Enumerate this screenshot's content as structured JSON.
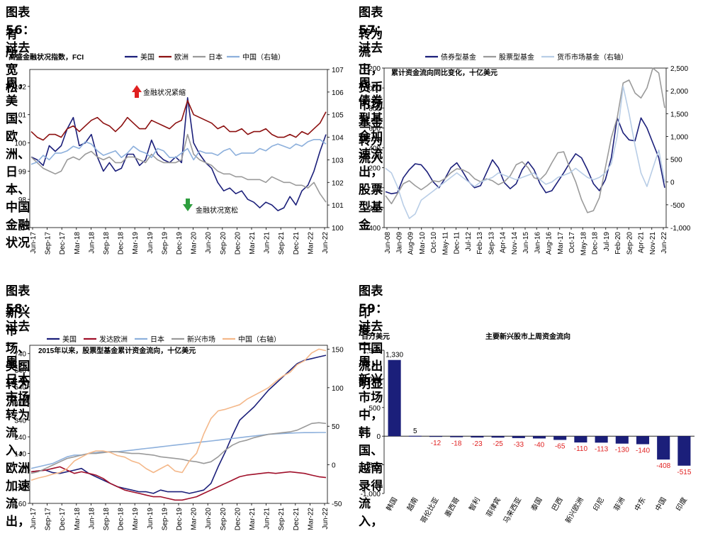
{
  "panel56": {
    "title_line1": "图表 56：过去一周，美国、欧洲、日本、中国金融状况",
    "title_line2": "有所宽松",
    "chart_data": {
      "type": "line",
      "title": "高盛金融状况指数，FCI",
      "y_left_ticks": [
        "102",
        "101",
        "100",
        "99",
        "98",
        "97"
      ],
      "y_left_range": [
        97,
        102.6
      ],
      "y_right_ticks": [
        "107",
        "106",
        "105",
        "104",
        "103",
        "102",
        "101",
        "100"
      ],
      "y_right_range": [
        100,
        107
      ],
      "x_tick_labels": [
        "Jun-17",
        "Sep-17",
        "Dec-17",
        "Mar-18",
        "Jun-18",
        "Sep-18",
        "Dec-18",
        "Mar-19",
        "Jun-19",
        "Sep-19",
        "Dec-19",
        "Mar-20",
        "Jun-20",
        "Sep-20",
        "Dec-20",
        "Mar-21",
        "Jun-21",
        "Sep-21",
        "Dec-21",
        "Mar-22",
        "Jun-22"
      ],
      "series": [
        {
          "name": "美国",
          "color": "#1b1f7a",
          "axis": "left",
          "values": [
            99.5,
            99.4,
            99.2,
            99.9,
            99.7,
            99.9,
            100.5,
            100.9,
            99.9,
            100.0,
            100.3,
            99.5,
            99.0,
            99.3,
            99.0,
            99.1,
            99.6,
            99.6,
            99.2,
            99.4,
            100.1,
            99.6,
            99.4,
            99.3,
            99.5,
            99.3,
            101.6,
            100.0,
            99.6,
            99.3,
            99.1,
            98.6,
            98.3,
            98.4,
            98.2,
            98.3,
            98.0,
            97.9,
            97.7,
            97.9,
            97.8,
            97.6,
            97.7,
            98.1,
            97.8,
            98.3,
            98.5,
            99.0,
            99.7,
            100.3
          ]
        },
        {
          "name": "欧洲",
          "color": "#8c1010",
          "axis": "left",
          "values": [
            100.4,
            100.2,
            100.1,
            100.3,
            100.3,
            100.2,
            100.5,
            100.6,
            100.4,
            100.6,
            100.8,
            100.9,
            100.7,
            100.6,
            100.4,
            100.6,
            100.9,
            100.7,
            100.5,
            100.5,
            100.8,
            100.7,
            100.6,
            100.5,
            100.7,
            100.8,
            101.5,
            101.0,
            100.9,
            100.8,
            100.7,
            100.5,
            100.6,
            100.4,
            100.4,
            100.5,
            100.3,
            100.4,
            100.4,
            100.5,
            100.3,
            100.2,
            100.2,
            100.3,
            100.2,
            100.4,
            100.3,
            100.5,
            100.7,
            101.1
          ]
        },
        {
          "name": "日本",
          "color": "#9a9a9a",
          "axis": "left",
          "values": [
            99.5,
            99.3,
            99.1,
            99.0,
            98.9,
            99.0,
            99.4,
            99.5,
            99.4,
            99.6,
            99.7,
            99.5,
            99.4,
            99.5,
            99.3,
            99.3,
            99.5,
            99.5,
            99.4,
            99.3,
            99.6,
            99.4,
            99.3,
            99.3,
            99.3,
            99.4,
            100.3,
            99.6,
            99.4,
            99.3,
            99.2,
            99.0,
            98.9,
            98.9,
            98.8,
            98.8,
            98.7,
            98.7,
            98.7,
            98.6,
            98.8,
            98.7,
            98.6,
            98.6,
            98.5,
            98.5,
            98.4,
            98.6,
            98.2,
            97.9
          ]
        },
        {
          "name": "中国（右轴）",
          "color": "#8db0dc",
          "axis": "right",
          "values": [
            102.8,
            102.9,
            103.2,
            103.0,
            103.3,
            103.3,
            103.4,
            103.6,
            103.5,
            103.8,
            103.7,
            103.4,
            103.2,
            103.3,
            103.4,
            103.1,
            103.3,
            103.6,
            103.4,
            103.3,
            103.1,
            103.5,
            103.4,
            103.1,
            103.1,
            103.3,
            103.5,
            103.0,
            103.4,
            103.3,
            103.3,
            103.2,
            103.4,
            103.5,
            103.2,
            103.3,
            103.3,
            103.3,
            103.5,
            103.4,
            103.6,
            103.7,
            103.6,
            103.5,
            103.7,
            103.6,
            103.8,
            103.9,
            103.9,
            103.7
          ]
        }
      ],
      "annotations": [
        {
          "text": "金融状况紧缩",
          "arrow": "up",
          "color": "#e02020"
        },
        {
          "text": "金融状况宽松",
          "arrow": "down",
          "color": "#2e9e3e"
        }
      ]
    }
  },
  "panel57": {
    "title_line1": "图表 57：过去一周，债券型基金加速流出，股票型基金",
    "title_line2": "转为流出，货币市场基金转为流入",
    "chart_data": {
      "type": "line",
      "title": "累计资金流向同比变化，十亿美元",
      "y_left_ticks": [
        "1,200",
        "1,000",
        "800",
        "600",
        "400",
        "200",
        "0",
        "-200",
        "-400"
      ],
      "y_left_range": [
        -400,
        1200
      ],
      "y_right_ticks": [
        "2,500",
        "2,000",
        "1,500",
        "1,000",
        "500",
        "0",
        "-500",
        "-1,000"
      ],
      "y_right_range": [
        -1000,
        2500
      ],
      "x_tick_labels": [
        "Jun-08",
        "Jan-09",
        "Aug-09",
        "Mar-10",
        "Oct-10",
        "May-11",
        "Dec-11",
        "Jul-12",
        "Feb-13",
        "Sep-13",
        "Apr-14",
        "Nov-14",
        "Jun-15",
        "Jan-16",
        "Aug-16",
        "Mar-17",
        "Oct-17",
        "May-18",
        "Dec-18",
        "Jul-19",
        "Feb-20",
        "Sep-20",
        "Apr-21",
        "Nov-21",
        "Jun-22"
      ],
      "series": [
        {
          "name": "债券型基金",
          "color": "#1b1f7a",
          "axis": "left",
          "values": [
            -40,
            -60,
            -50,
            100,
            180,
            240,
            230,
            160,
            60,
            0,
            90,
            200,
            250,
            160,
            60,
            0,
            20,
            150,
            280,
            200,
            50,
            -10,
            40,
            180,
            260,
            180,
            40,
            -50,
            -30,
            60,
            150,
            250,
            340,
            300,
            180,
            40,
            -30,
            80,
            300,
            700,
            550,
            480,
            470,
            700,
            600,
            450,
            300,
            0
          ]
        },
        {
          "name": "股票型基金",
          "color": "#9a9a9a",
          "axis": "left",
          "values": [
            -80,
            -160,
            -60,
            40,
            70,
            20,
            -20,
            20,
            70,
            60,
            90,
            150,
            190,
            180,
            150,
            90,
            60,
            90,
            70,
            30,
            60,
            120,
            230,
            260,
            200,
            100,
            80,
            140,
            250,
            350,
            360,
            200,
            60,
            -120,
            -250,
            -230,
            -100,
            200,
            500,
            700,
            1050,
            1080,
            950,
            900,
            1000,
            1200,
            1150,
            800
          ]
        },
        {
          "name": "货币市场基金（右轴）",
          "color": "#b8cde6",
          "axis": "right",
          "values": [
            300,
            200,
            -100,
            -500,
            -800,
            -700,
            -400,
            -300,
            -200,
            -100,
            0,
            100,
            200,
            100,
            0,
            -100,
            0,
            50,
            100,
            200,
            150,
            100,
            50,
            100,
            150,
            200,
            50,
            -50,
            0,
            100,
            150,
            200,
            300,
            200,
            100,
            50,
            100,
            200,
            400,
            1000,
            2100,
            1500,
            800,
            200,
            -100,
            300,
            700,
            0
          ]
        }
      ]
    }
  },
  "panel58": {
    "title_line1": "图表 58：过去一周，日本市场转为流入，欧洲加速流出，",
    "title_line2": "新兴市场、美国转为流出",
    "chart_data": {
      "type": "line",
      "title": "2015年以来，股票型基金累计资金流向，十亿美元",
      "y_left_ticks": [
        "740",
        "640",
        "540",
        "440",
        "340",
        "240",
        "140",
        "40",
        "-60",
        "-160"
      ],
      "y_left_range": [
        -160,
        790
      ],
      "y_right_ticks": [
        "150",
        "100",
        "50",
        "0",
        "-50"
      ],
      "y_right_range": [
        -50,
        155
      ],
      "x_tick_labels": [
        "Jun-17",
        "Sep-17",
        "Dec-17",
        "Mar-18",
        "Jun-18",
        "Sep-18",
        "Dec-18",
        "Mar-19",
        "Jun-19",
        "Sep-19",
        "Dec-19",
        "Mar-20",
        "Jun-20",
        "Sep-20",
        "Dec-20",
        "Mar-21",
        "Jun-21",
        "Sep-21",
        "Dec-21",
        "Mar-22",
        "Jun-22"
      ],
      "series": [
        {
          "name": "美国",
          "color": "#1b1f7a",
          "axis": "left",
          "values": [
            30,
            35,
            40,
            25,
            20,
            30,
            40,
            50,
            20,
            0,
            -20,
            -40,
            -60,
            -70,
            -80,
            -90,
            -90,
            -100,
            -80,
            -90,
            -90,
            -90,
            -100,
            -90,
            -80,
            -40,
            60,
            150,
            250,
            340,
            380,
            420,
            470,
            520,
            560,
            600,
            640,
            680,
            700,
            710,
            720,
            730
          ]
        },
        {
          "name": "发达欧洲",
          "color": "#a0102a",
          "axis": "left",
          "values": [
            30,
            35,
            40,
            50,
            60,
            40,
            20,
            30,
            20,
            10,
            -10,
            -40,
            -60,
            -80,
            -90,
            -100,
            -110,
            -120,
            -120,
            -130,
            -140,
            -140,
            -130,
            -120,
            -100,
            -80,
            -60,
            -40,
            -20,
            0,
            10,
            15,
            20,
            25,
            20,
            25,
            30,
            25,
            20,
            10,
            0,
            -5
          ]
        },
        {
          "name": "日本",
          "color": "#8db0dc",
          "axis": "left",
          "values": [
            50,
            60,
            70,
            80,
            100,
            120,
            130,
            130,
            140,
            145,
            150,
            150,
            150,
            155,
            160,
            165,
            170,
            175,
            180,
            185,
            190,
            195,
            200,
            205,
            210,
            215,
            220,
            225,
            230,
            235,
            240,
            245,
            250,
            255,
            258,
            260,
            262,
            264,
            265,
            265,
            266,
            266
          ]
        },
        {
          "name": "新兴市场",
          "color": "#9a9a9a",
          "axis": "left",
          "values": [
            20,
            30,
            50,
            70,
            90,
            110,
            120,
            130,
            140,
            140,
            145,
            150,
            150,
            145,
            140,
            140,
            135,
            130,
            120,
            115,
            110,
            105,
            95,
            90,
            80,
            90,
            120,
            160,
            190,
            210,
            220,
            235,
            245,
            255,
            260,
            265,
            270,
            280,
            300,
            320,
            325,
            320
          ]
        },
        {
          "name": "中国（右轴）",
          "color": "#f4b88a",
          "axis": "right",
          "values": [
            -20,
            -17,
            -15,
            -12,
            -10,
            -5,
            5,
            10,
            15,
            18,
            18,
            16,
            12,
            10,
            5,
            2,
            -5,
            -10,
            -5,
            0,
            -8,
            -10,
            5,
            15,
            40,
            60,
            70,
            72,
            75,
            78,
            85,
            90,
            95,
            100,
            108,
            115,
            120,
            130,
            135,
            145,
            150,
            148
          ]
        }
      ]
    }
  },
  "panel59": {
    "title_line1": "图表 59：过去一周，新兴市场中，韩国、越南录得流入，",
    "title_line2": "印度、中国流出明显",
    "chart_data": {
      "type": "bar",
      "title": "主要新兴股市上周资金流向",
      "ylabel": "百万美元",
      "ylim": [
        -1000,
        1500
      ],
      "y_ticks": [
        "1,500",
        "1,000",
        "500",
        "0",
        "-500",
        "-1,000"
      ],
      "categories": [
        "韩国",
        "越南",
        "哥伦比亚",
        "墨西哥",
        "智利",
        "菲律宾",
        "马来西亚",
        "泰国",
        "巴西",
        "新兴欧洲",
        "印尼",
        "菲洲",
        "中东",
        "中国",
        "印度"
      ],
      "values": [
        1330,
        5,
        -12,
        -18,
        -23,
        -25,
        -33,
        -40,
        -65,
        -110,
        -113,
        -130,
        -140,
        -408,
        -515
      ],
      "data_labels": [
        "1,330",
        "5",
        "-12",
        "-18",
        "-23",
        "-25",
        "-33",
        "-40",
        "-65",
        "-110",
        "-113",
        "-130",
        "-140",
        "-408",
        "-515"
      ],
      "bar_color": "#1b1f7a",
      "negative_label_color": "#e02020"
    }
  }
}
